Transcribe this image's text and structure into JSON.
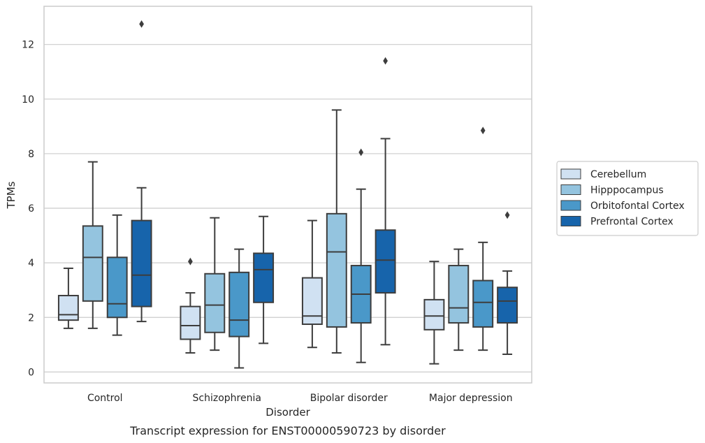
{
  "chart_data": {
    "type": "box",
    "title": "",
    "caption": "Transcript expression for ENST00000590723 by disorder",
    "xlabel": "Disorder",
    "ylabel": "TPMs",
    "ylim": [
      -0.4,
      13.4
    ],
    "yticks": [
      0,
      2,
      4,
      6,
      8,
      10,
      12
    ],
    "grid": "horizontal",
    "legend_position": "right",
    "categories": [
      "Control",
      "Schizophrenia",
      "Bipolar disorder",
      "Major depression"
    ],
    "series": [
      {
        "name": "Cerebellum",
        "color": "#d0e1f2",
        "boxes": [
          {
            "whisker_low": 1.6,
            "q1": 1.9,
            "median": 2.1,
            "q3": 2.8,
            "whisker_high": 3.8,
            "outliers": []
          },
          {
            "whisker_low": 0.7,
            "q1": 1.2,
            "median": 1.7,
            "q3": 2.4,
            "whisker_high": 2.9,
            "outliers": [
              4.05
            ]
          },
          {
            "whisker_low": 0.9,
            "q1": 1.75,
            "median": 2.05,
            "q3": 3.45,
            "whisker_high": 5.55,
            "outliers": []
          },
          {
            "whisker_low": 0.3,
            "q1": 1.55,
            "median": 2.05,
            "q3": 2.65,
            "whisker_high": 4.05,
            "outliers": []
          }
        ]
      },
      {
        "name": "Hipppocampus",
        "color": "#94c4df",
        "boxes": [
          {
            "whisker_low": 1.6,
            "q1": 2.6,
            "median": 4.2,
            "q3": 5.35,
            "whisker_high": 7.7,
            "outliers": []
          },
          {
            "whisker_low": 0.8,
            "q1": 1.45,
            "median": 2.45,
            "q3": 3.6,
            "whisker_high": 5.65,
            "outliers": []
          },
          {
            "whisker_low": 0.7,
            "q1": 1.65,
            "median": 4.4,
            "q3": 5.8,
            "whisker_high": 9.6,
            "outliers": []
          },
          {
            "whisker_low": 0.8,
            "q1": 1.8,
            "median": 2.35,
            "q3": 3.9,
            "whisker_high": 4.5,
            "outliers": []
          }
        ]
      },
      {
        "name": "Orbitofontal Cortex",
        "color": "#4a98c9",
        "boxes": [
          {
            "whisker_low": 1.35,
            "q1": 2.0,
            "median": 2.5,
            "q3": 4.2,
            "whisker_high": 5.75,
            "outliers": []
          },
          {
            "whisker_low": 0.15,
            "q1": 1.3,
            "median": 1.9,
            "q3": 3.65,
            "whisker_high": 4.5,
            "outliers": []
          },
          {
            "whisker_low": 0.35,
            "q1": 1.8,
            "median": 2.85,
            "q3": 3.9,
            "whisker_high": 6.7,
            "outliers": [
              8.05
            ]
          },
          {
            "whisker_low": 0.8,
            "q1": 1.65,
            "median": 2.55,
            "q3": 3.35,
            "whisker_high": 4.75,
            "outliers": [
              8.85
            ]
          }
        ]
      },
      {
        "name": "Prefrontal Cortex",
        "color": "#1764ab",
        "boxes": [
          {
            "whisker_low": 1.85,
            "q1": 2.4,
            "median": 3.55,
            "q3": 5.55,
            "whisker_high": 6.75,
            "outliers": [
              12.75
            ]
          },
          {
            "whisker_low": 1.05,
            "q1": 2.55,
            "median": 3.75,
            "q3": 4.35,
            "whisker_high": 5.7,
            "outliers": []
          },
          {
            "whisker_low": 1.0,
            "q1": 2.9,
            "median": 4.1,
            "q3": 5.2,
            "whisker_high": 8.55,
            "outliers": [
              11.4
            ]
          },
          {
            "whisker_low": 0.65,
            "q1": 1.8,
            "median": 2.6,
            "q3": 3.1,
            "whisker_high": 3.7,
            "outliers": [
              5.75
            ]
          }
        ]
      }
    ]
  }
}
